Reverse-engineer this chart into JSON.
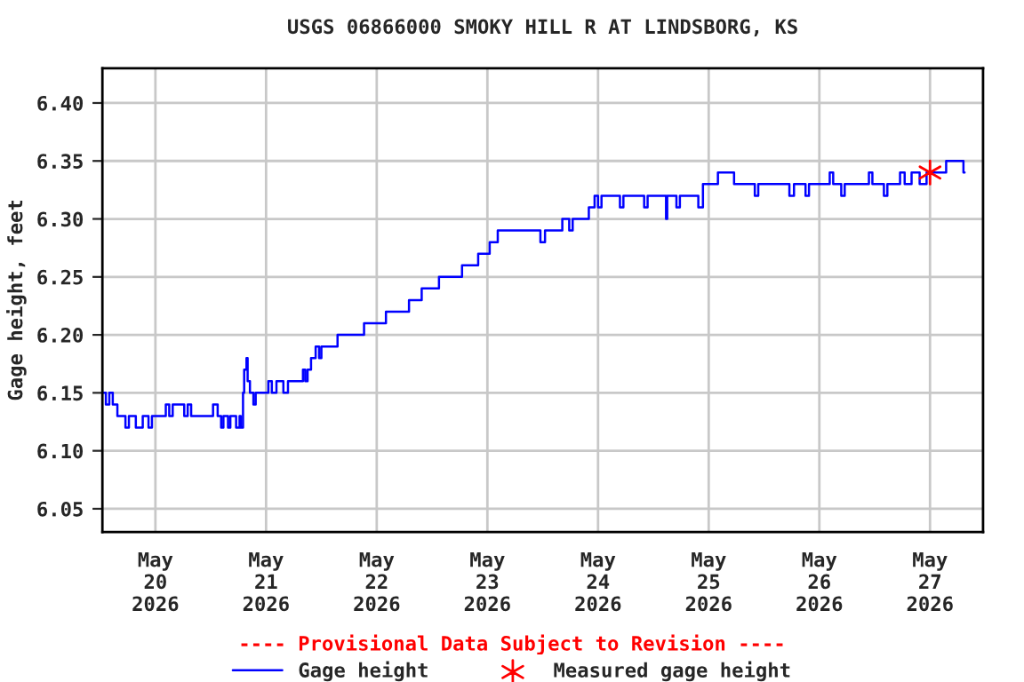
{
  "chart_data": {
    "type": "step",
    "title": "USGS 06866000 SMOKY HILL R AT LINDSBORG, KS",
    "ylabel": "Gage height, feet",
    "annotations": [
      "---- Provisional Data Subject to Revision ----"
    ],
    "series": [
      {
        "name": "Gage height",
        "color": "#0000ff",
        "x": [
          "2026-05-19T12:30",
          "2026-05-19T13:15",
          "2026-05-19T14:00",
          "2026-05-19T14:45",
          "2026-05-19T15:45",
          "2026-05-19T17:30",
          "2026-05-19T18:15",
          "2026-05-19T19:45",
          "2026-05-19T21:15",
          "2026-05-19T22:30",
          "2026-05-19T23:15",
          "2026-05-20T02:15",
          "2026-05-20T03:00",
          "2026-05-20T03:45",
          "2026-05-20T05:45",
          "2026-05-20T06:15",
          "2026-05-20T07:00",
          "2026-05-20T07:45",
          "2026-05-20T11:15",
          "2026-05-20T12:30",
          "2026-05-20T13:15",
          "2026-05-20T13:30",
          "2026-05-20T14:15",
          "2026-05-20T14:45",
          "2026-05-20T15:45",
          "2026-05-20T16:15",
          "2026-05-20T17:30",
          "2026-05-20T18:15",
          "2026-05-20T18:30",
          "2026-05-20T19:00",
          "2026-05-20T19:15",
          "2026-05-20T19:45",
          "2026-05-20T20:00",
          "2026-05-20T20:30",
          "2026-05-20T21:15",
          "2026-05-20T21:45",
          "2026-05-21T00:30",
          "2026-05-21T01:15",
          "2026-05-21T02:15",
          "2026-05-21T03:45",
          "2026-05-21T04:45",
          "2026-05-21T08:00",
          "2026-05-21T08:30",
          "2026-05-21T09:00",
          "2026-05-21T09:45",
          "2026-05-21T10:45",
          "2026-05-21T11:30",
          "2026-05-21T12:00",
          "2026-05-21T15:30",
          "2026-05-21T21:15",
          "2026-05-22T02:00",
          "2026-05-22T07:00",
          "2026-05-22T09:45",
          "2026-05-22T13:30",
          "2026-05-22T18:30",
          "2026-05-22T22:00",
          "2026-05-23T00:30",
          "2026-05-23T02:15",
          "2026-05-23T11:30",
          "2026-05-23T12:30",
          "2026-05-23T16:15",
          "2026-05-23T17:45",
          "2026-05-23T18:30",
          "2026-05-23T22:00",
          "2026-05-23T23:15",
          "2026-05-24T00:00",
          "2026-05-24T00:45",
          "2026-05-24T04:45",
          "2026-05-24T05:30",
          "2026-05-24T10:00",
          "2026-05-24T10:45",
          "2026-05-24T14:45",
          "2026-05-24T15:00",
          "2026-05-24T17:00",
          "2026-05-24T17:45",
          "2026-05-24T21:45",
          "2026-05-24T22:45",
          "2026-05-25T02:00",
          "2026-05-25T05:30",
          "2026-05-25T10:00",
          "2026-05-25T10:45",
          "2026-05-25T17:30",
          "2026-05-25T18:30",
          "2026-05-25T21:00",
          "2026-05-25T21:45",
          "2026-05-26T02:15",
          "2026-05-26T03:00",
          "2026-05-26T04:45",
          "2026-05-26T05:30",
          "2026-05-26T10:45",
          "2026-05-26T11:30",
          "2026-05-26T14:00",
          "2026-05-26T14:45",
          "2026-05-26T17:30",
          "2026-05-26T18:30",
          "2026-05-26T20:00",
          "2026-05-26T21:45",
          "2026-05-26T23:15",
          "2026-05-27T03:30",
          "2026-05-27T07:15",
          "2026-05-27T07:30"
        ],
        "values": [
          6.15,
          6.14,
          6.15,
          6.14,
          6.13,
          6.12,
          6.13,
          6.12,
          6.13,
          6.12,
          6.13,
          6.14,
          6.13,
          6.14,
          6.14,
          6.13,
          6.14,
          6.13,
          6.13,
          6.14,
          6.14,
          6.13,
          6.12,
          6.13,
          6.12,
          6.13,
          6.12,
          6.13,
          6.12,
          6.15,
          6.17,
          6.18,
          6.16,
          6.15,
          6.14,
          6.15,
          6.16,
          6.15,
          6.16,
          6.15,
          6.16,
          6.17,
          6.16,
          6.17,
          6.18,
          6.19,
          6.18,
          6.19,
          6.2,
          6.21,
          6.22,
          6.23,
          6.24,
          6.25,
          6.26,
          6.27,
          6.28,
          6.29,
          6.28,
          6.29,
          6.3,
          6.29,
          6.3,
          6.31,
          6.32,
          6.31,
          6.32,
          6.31,
          6.32,
          6.31,
          6.32,
          6.3,
          6.32,
          6.31,
          6.32,
          6.31,
          6.33,
          6.34,
          6.33,
          6.32,
          6.33,
          6.32,
          6.33,
          6.32,
          6.33,
          6.34,
          6.33,
          6.32,
          6.33,
          6.34,
          6.33,
          6.32,
          6.33,
          6.34,
          6.33,
          6.34,
          6.33,
          6.34,
          6.35,
          6.34,
          6.34
        ]
      },
      {
        "name": "Measured gage height",
        "color": "#ff0000",
        "type": "scatter",
        "marker": "cross",
        "x": [
          "2026-05-27T00:00"
        ],
        "values": [
          6.34
        ]
      }
    ],
    "xlim": [
      "2026-05-19T12:30",
      "2026-05-27T11:30"
    ],
    "xticks": [
      {
        "value": "2026-05-20",
        "label": "May\n20\n2026"
      },
      {
        "value": "2026-05-21",
        "label": "May\n21\n2026"
      },
      {
        "value": "2026-05-22",
        "label": "May\n22\n2026"
      },
      {
        "value": "2026-05-23",
        "label": "May\n23\n2026"
      },
      {
        "value": "2026-05-24",
        "label": "May\n24\n2026"
      },
      {
        "value": "2026-05-25",
        "label": "May\n25\n2026"
      },
      {
        "value": "2026-05-26",
        "label": "May\n26\n2026"
      },
      {
        "value": "2026-05-27",
        "label": "May\n27\n2026"
      }
    ],
    "ylim": [
      6.03,
      6.43
    ],
    "yticks": [
      {
        "value": 6.05,
        "label": "6.05"
      },
      {
        "value": 6.1,
        "label": "6.10"
      },
      {
        "value": 6.15,
        "label": "6.15"
      },
      {
        "value": 6.2,
        "label": "6.20"
      },
      {
        "value": 6.25,
        "label": "6.25"
      },
      {
        "value": 6.3,
        "label": "6.30"
      },
      {
        "value": 6.35,
        "label": "6.35"
      },
      {
        "value": 6.4,
        "label": "6.40"
      }
    ],
    "grid": true,
    "legend": "bottom"
  }
}
